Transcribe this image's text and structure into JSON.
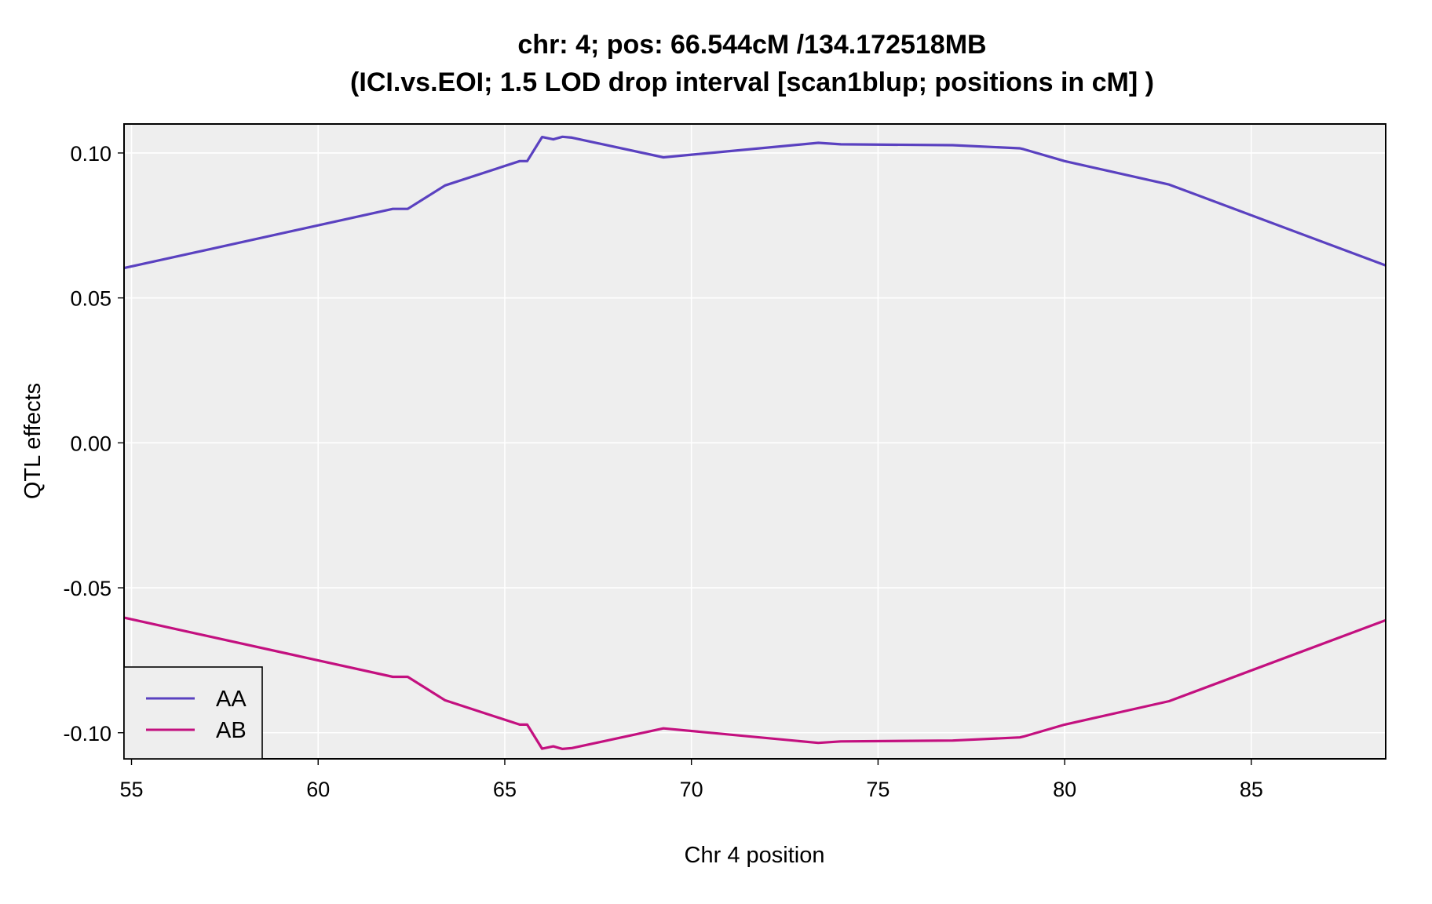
{
  "chart_data": {
    "type": "line",
    "title": "chr: 4; pos: 66.544cM /134.172518MB",
    "subtitle": "(ICI.vs.EOI; 1.5 LOD drop interval [scan1blup; positions in cM] )",
    "xlabel": "Chr 4 position",
    "ylabel": "QTL effects",
    "xlim": [
      54.8,
      88.6
    ],
    "ylim": [
      -0.109,
      0.11
    ],
    "xticks": [
      55,
      60,
      65,
      70,
      75,
      80,
      85
    ],
    "xtick_labels": [
      "55",
      "60",
      "65",
      "70",
      "75",
      "80",
      "85"
    ],
    "yticks": [
      -0.1,
      -0.05,
      0.0,
      0.05,
      0.1
    ],
    "ytick_labels": [
      "-0.10",
      "-0.05",
      "0.00",
      "0.05",
      "0.10"
    ],
    "grid": true,
    "background": "#eeeeee",
    "legend_position": "bottom-left",
    "series": [
      {
        "name": "AA",
        "color": "#5a41c0",
        "x": [
          54.8,
          62.0,
          62.4,
          63.4,
          65.4,
          65.6,
          66.0,
          66.3,
          66.544,
          66.8,
          69.25,
          73.4,
          74.0,
          77.0,
          78.8,
          78.9,
          80.0,
          82.8,
          88.6
        ],
        "y": [
          0.0603,
          0.0807,
          0.0807,
          0.0888,
          0.0972,
          0.0972,
          0.1055,
          0.1047,
          0.1056,
          0.1053,
          0.0985,
          0.1035,
          0.103,
          0.1027,
          0.1016,
          0.1013,
          0.0972,
          0.0891,
          0.0612
        ]
      },
      {
        "name": "AB",
        "color": "#c3107f",
        "x": [
          54.8,
          62.0,
          62.4,
          63.4,
          65.4,
          65.6,
          66.0,
          66.3,
          66.544,
          66.8,
          69.25,
          73.4,
          74.0,
          77.0,
          78.8,
          78.9,
          80.0,
          82.8,
          88.6
        ],
        "y": [
          -0.0603,
          -0.0807,
          -0.0807,
          -0.0888,
          -0.0972,
          -0.0972,
          -0.1055,
          -0.1047,
          -0.1056,
          -0.1053,
          -0.0985,
          -0.1035,
          -0.103,
          -0.1027,
          -0.1016,
          -0.1013,
          -0.0972,
          -0.0891,
          -0.0612
        ]
      }
    ]
  }
}
